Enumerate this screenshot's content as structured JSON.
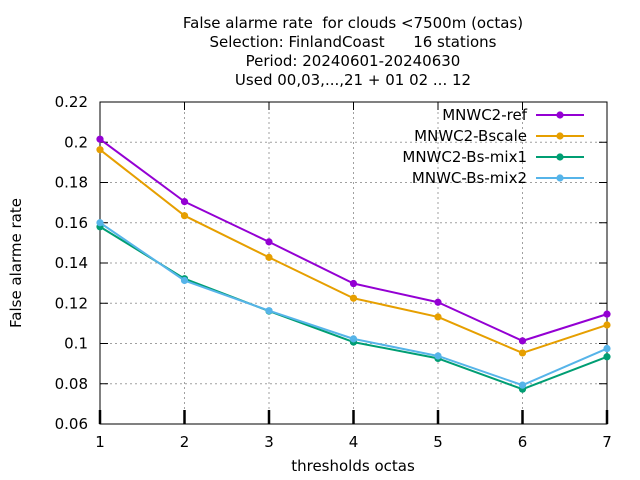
{
  "chart_data": {
    "type": "line",
    "title_lines": [
      "False alarme rate  for clouds <7500m (octas)",
      "Selection: FinlandCoast      16 stations",
      "Period: 20240601-20240630",
      "Used 00,03,...,21 + 01 02 ... 12"
    ],
    "xlabel": "thresholds octas",
    "ylabel": "False alarme rate",
    "x": [
      1,
      2,
      3,
      4,
      5,
      6,
      7
    ],
    "xlim": [
      1,
      7
    ],
    "ylim": [
      0.06,
      0.22
    ],
    "xticks": [
      1,
      2,
      3,
      4,
      5,
      6,
      7
    ],
    "xtick_labels": [
      "1",
      "2",
      "3",
      "4",
      "5",
      "6",
      "7"
    ],
    "yticks": [
      0.06,
      0.08,
      0.1,
      0.12,
      0.14,
      0.16,
      0.18,
      0.2,
      0.22
    ],
    "ytick_labels": [
      "0.06",
      "0.08",
      "0.1",
      "0.12",
      "0.14",
      "0.16",
      "0.18",
      "0.2",
      "0.22"
    ],
    "grid": true,
    "legend_position": "top-right",
    "series": [
      {
        "name": "MNWC2-ref",
        "color": "#9400d3",
        "values": [
          0.2015,
          0.1705,
          0.1505,
          0.1298,
          0.1205,
          0.1013,
          0.1146
        ]
      },
      {
        "name": "MNWC2-Bscale",
        "color": "#e69f00",
        "values": [
          0.1963,
          0.1635,
          0.1428,
          0.1225,
          0.1132,
          0.0953,
          0.1092
        ]
      },
      {
        "name": "MNWC2-Bs-mix1",
        "color": "#009e73",
        "values": [
          0.158,
          0.1322,
          0.1161,
          0.1007,
          0.0926,
          0.0773,
          0.0934
        ]
      },
      {
        "name": "MNWC-Bs-mix2",
        "color": "#56b4e9",
        "values": [
          0.16,
          0.1313,
          0.1163,
          0.1023,
          0.0938,
          0.0793,
          0.0975
        ]
      }
    ]
  }
}
